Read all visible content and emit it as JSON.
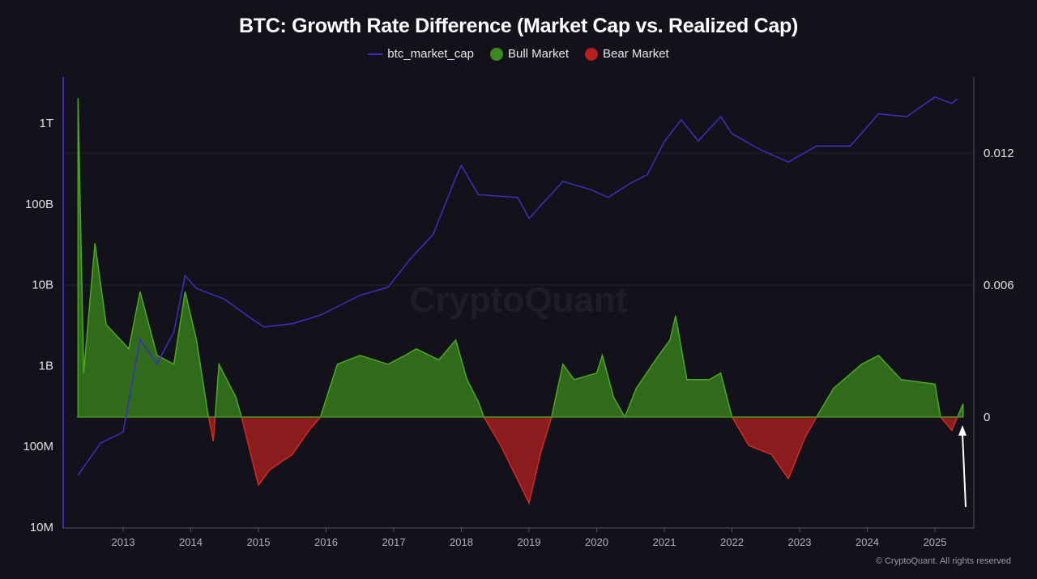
{
  "chart_data": {
    "type": "line+area",
    "title": "BTC: Growth Rate Difference (Market Cap vs. Realized Cap)",
    "legend": {
      "placement": "top",
      "entries": [
        "btc_market_cap",
        "Bull Market",
        "Bear Market"
      ]
    },
    "colors": {
      "market_cap": "#3a2fb8",
      "bull": "#3b8a1e",
      "bear": "#b3201f",
      "background": "#13121a"
    },
    "x_ticks": [
      "2013",
      "2014",
      "2015",
      "2016",
      "2017",
      "2018",
      "2019",
      "2020",
      "2021",
      "2022",
      "2023",
      "2024",
      "2025"
    ],
    "left_axis": {
      "scale": "log",
      "ticks": [
        "10M",
        "100M",
        "1B",
        "10B",
        "100B",
        "1T"
      ],
      "range": [
        10000000,
        3000000000000
      ]
    },
    "right_axis": {
      "scale": "linear",
      "ticks": [
        "0",
        "0.006",
        "0.012"
      ],
      "range": [
        -0.004,
        0.0155
      ]
    },
    "grid": true,
    "watermark": "CryptoQuant",
    "series": [
      {
        "name": "btc_market_cap",
        "axis": "left",
        "points": [
          [
            "2012-05",
            44000000.0
          ],
          [
            "2012-09",
            110000000.0
          ],
          [
            "2013-01",
            150000000.0
          ],
          [
            "2013-04",
            2100000000.0
          ],
          [
            "2013-07",
            1050000000.0
          ],
          [
            "2013-10",
            2600000000.0
          ],
          [
            "2013-12",
            13000000000.0
          ],
          [
            "2014-02",
            9000000000.0
          ],
          [
            "2014-07",
            6600000000.0
          ],
          [
            "2014-12",
            3700000000.0
          ],
          [
            "2015-02",
            3000000000.0
          ],
          [
            "2015-07",
            3300000000.0
          ],
          [
            "2015-12",
            4200000000.0
          ],
          [
            "2016-07",
            7400000000.0
          ],
          [
            "2016-12",
            9300000000.0
          ],
          [
            "2017-04",
            21000000000.0
          ],
          [
            "2017-08",
            42000000000.0
          ],
          [
            "2017-12",
            210000000000.0
          ],
          [
            "2018-01",
            300000000000.0
          ],
          [
            "2018-04",
            130000000000.0
          ],
          [
            "2018-11",
            120000000000.0
          ],
          [
            "2019-01",
            66000000000.0
          ],
          [
            "2019-07",
            190000000000.0
          ],
          [
            "2019-12",
            150000000000.0
          ],
          [
            "2020-03",
            120000000000.0
          ],
          [
            "2020-07",
            180000000000.0
          ],
          [
            "2020-10",
            230000000000.0
          ],
          [
            "2021-01",
            590000000000.0
          ],
          [
            "2021-04",
            1100000000000.0
          ],
          [
            "2021-07",
            600000000000.0
          ],
          [
            "2021-11",
            1200000000000.0
          ],
          [
            "2022-01",
            740000000000.0
          ],
          [
            "2022-06",
            470000000000.0
          ],
          [
            "2022-11",
            330000000000.0
          ],
          [
            "2023-04",
            520000000000.0
          ],
          [
            "2023-10",
            520000000000.0
          ],
          [
            "2024-03",
            1300000000000.0
          ],
          [
            "2024-08",
            1200000000000.0
          ],
          [
            "2025-01",
            2100000000000.0
          ],
          [
            "2025-04",
            1750000000000.0
          ],
          [
            "2025-05",
            2000000000000.0
          ]
        ]
      },
      {
        "name": "Growth Rate Difference",
        "axis": "right",
        "points": [
          [
            "2012-05",
            0.0145
          ],
          [
            "2012-06",
            0.002
          ],
          [
            "2012-08",
            0.0079
          ],
          [
            "2012-10",
            0.0042
          ],
          [
            "2013-02",
            0.0031
          ],
          [
            "2013-04",
            0.0057
          ],
          [
            "2013-07",
            0.0028
          ],
          [
            "2013-10",
            0.0024
          ],
          [
            "2013-12",
            0.0057
          ],
          [
            "2014-02",
            0.0035
          ],
          [
            "2014-04",
            0.0002
          ],
          [
            "2014-05",
            -0.0011
          ],
          [
            "2014-06",
            0.0024
          ],
          [
            "2014-09",
            0.0009
          ],
          [
            "2014-10",
            0
          ],
          [
            "2015-01",
            -0.0031
          ],
          [
            "2015-03",
            -0.0024
          ],
          [
            "2015-07",
            -0.0017
          ],
          [
            "2015-10",
            -0.0006
          ],
          [
            "2015-12",
            0
          ],
          [
            "2016-03",
            0.0024
          ],
          [
            "2016-07",
            0.0028
          ],
          [
            "2016-12",
            0.0024
          ],
          [
            "2017-03",
            0.0028
          ],
          [
            "2017-05",
            0.0031
          ],
          [
            "2017-09",
            0.0026
          ],
          [
            "2017-12",
            0.0035
          ],
          [
            "2018-02",
            0.0017
          ],
          [
            "2018-04",
            0.0007
          ],
          [
            "2018-05",
            0
          ],
          [
            "2018-08",
            -0.0013
          ],
          [
            "2019-01",
            -0.0039
          ],
          [
            "2019-03",
            -0.0017
          ],
          [
            "2019-05",
            0
          ],
          [
            "2019-07",
            0.0024
          ],
          [
            "2019-09",
            0.0017
          ],
          [
            "2020-01",
            0.002
          ],
          [
            "2020-02",
            0.0028
          ],
          [
            "2020-04",
            0.0009
          ],
          [
            "2020-06",
            0
          ],
          [
            "2020-08",
            0.0013
          ],
          [
            "2020-12",
            0.0028
          ],
          [
            "2021-02",
            0.0035
          ],
          [
            "2021-03",
            0.0046
          ],
          [
            "2021-05",
            0.0017
          ],
          [
            "2021-09",
            0.0017
          ],
          [
            "2021-11",
            0.002
          ],
          [
            "2022-01",
            0
          ],
          [
            "2022-04",
            -0.0013
          ],
          [
            "2022-08",
            -0.0017
          ],
          [
            "2022-11",
            -0.0028
          ],
          [
            "2023-02",
            -0.0009
          ],
          [
            "2023-04",
            0
          ],
          [
            "2023-07",
            0.0013
          ],
          [
            "2023-12",
            0.0024
          ],
          [
            "2024-03",
            0.0028
          ],
          [
            "2024-07",
            0.0017
          ],
          [
            "2025-01",
            0.0015
          ],
          [
            "2025-02",
            0
          ],
          [
            "2025-04",
            -0.0006
          ],
          [
            "2025-05",
            0
          ],
          [
            "2025-06",
            0.0006
          ]
        ]
      }
    ],
    "annotation": "arrow pointing at latest value"
  },
  "footer": {
    "copyright": "© CryptoQuant. All rights reserved"
  }
}
